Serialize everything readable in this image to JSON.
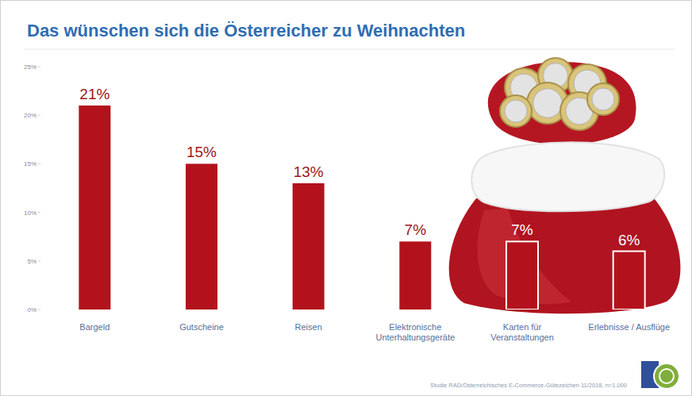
{
  "chart_data": {
    "type": "bar",
    "title": "Das wünschen sich die Österreicher zu Weihnachten",
    "categories": [
      "Bargeld",
      "Gutscheine",
      "Reisen",
      "Elektronische Unterhaltungsgeräte",
      "Karten für Veranstaltungen",
      "Erlebnisse / Ausflüge"
    ],
    "values": [
      21,
      15,
      13,
      7,
      7,
      6
    ],
    "value_labels": [
      "21%",
      "15%",
      "13%",
      "7%",
      "7%",
      "6%"
    ],
    "data_labels": true,
    "color": "#b3121d",
    "ylim": [
      0,
      25
    ],
    "yticks": [
      {
        "value": 0,
        "label": "0%"
      },
      {
        "value": 5,
        "label": "5%"
      },
      {
        "value": 10,
        "label": "10%"
      },
      {
        "value": 15,
        "label": "15%"
      },
      {
        "value": 20,
        "label": "20%"
      },
      {
        "value": 25,
        "label": "25%"
      }
    ],
    "grid": false,
    "source": "Studie RAD/Österreichisches E-Commerce-Gütezeichen 11/2018, n=1.000"
  }
}
